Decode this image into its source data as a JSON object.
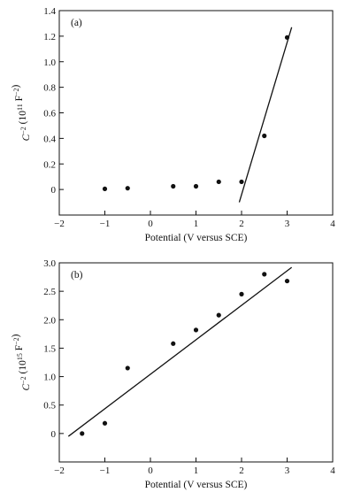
{
  "chart_data": [
    {
      "type": "scatter",
      "panel_label": "(a)",
      "xlabel": "Potential (V versus SCE)",
      "ylabel": "C",
      "ylabel_sup": "−2",
      "ylabel_unit_open": " (10",
      "ylabel_exp": "11",
      "ylabel_unit_mid": " F",
      "ylabel_unit_sup": "−2",
      "ylabel_unit_close": ")",
      "xlim": [
        -2,
        4
      ],
      "ylim": [
        -0.2,
        1.4
      ],
      "xticks": [
        -2,
        -1,
        0,
        1,
        2,
        3,
        4
      ],
      "xtick_labels": [
        "−2",
        "−1",
        "0",
        "1",
        "2",
        "3",
        "4"
      ],
      "yticks": [
        0,
        0.2,
        0.4,
        0.6,
        0.8,
        1.0,
        1.2,
        1.4
      ],
      "ytick_labels": [
        "0",
        "0.2",
        "0.4",
        "0.6",
        "0.8",
        "1.0",
        "1.2",
        "1.4"
      ],
      "grid": false,
      "series": [
        {
          "x": [
            -1.0,
            -0.5,
            0.5,
            1.0,
            1.5,
            2.0,
            2.5,
            3.0
          ],
          "y": [
            0.005,
            0.01,
            0.025,
            0.025,
            0.06,
            0.06,
            0.42,
            1.19
          ]
        }
      ],
      "fit_line": {
        "x": [
          1.95,
          3.1
        ],
        "y": [
          -0.1,
          1.27
        ]
      }
    },
    {
      "type": "scatter",
      "panel_label": "(b)",
      "xlabel": "Potential (V versus SCE)",
      "ylabel": "C",
      "ylabel_sup": "−2",
      "ylabel_unit_open": " (10",
      "ylabel_exp": "15",
      "ylabel_unit_mid": " F",
      "ylabel_unit_sup": "−2",
      "ylabel_unit_close": ")",
      "xlim": [
        -2,
        4
      ],
      "ylim": [
        -0.5,
        3.0
      ],
      "xticks": [
        -2,
        -1,
        0,
        1,
        2,
        3,
        4
      ],
      "xtick_labels": [
        "−2",
        "−1",
        "0",
        "1",
        "2",
        "3",
        "4"
      ],
      "yticks": [
        0,
        0.5,
        1.0,
        1.5,
        2.0,
        2.5,
        3.0
      ],
      "ytick_labels": [
        "0",
        "0.5",
        "1.0",
        "1.5",
        "2.0",
        "2.5",
        "3.0"
      ],
      "grid": false,
      "series": [
        {
          "x": [
            -1.5,
            -1.0,
            -0.5,
            0.5,
            1.0,
            1.5,
            2.0,
            2.5,
            3.0
          ],
          "y": [
            0.0,
            0.18,
            1.15,
            1.58,
            1.82,
            2.08,
            2.45,
            2.8,
            2.68
          ]
        }
      ],
      "fit_line": {
        "x": [
          -1.8,
          3.1
        ],
        "y": [
          -0.05,
          2.92
        ]
      }
    }
  ]
}
